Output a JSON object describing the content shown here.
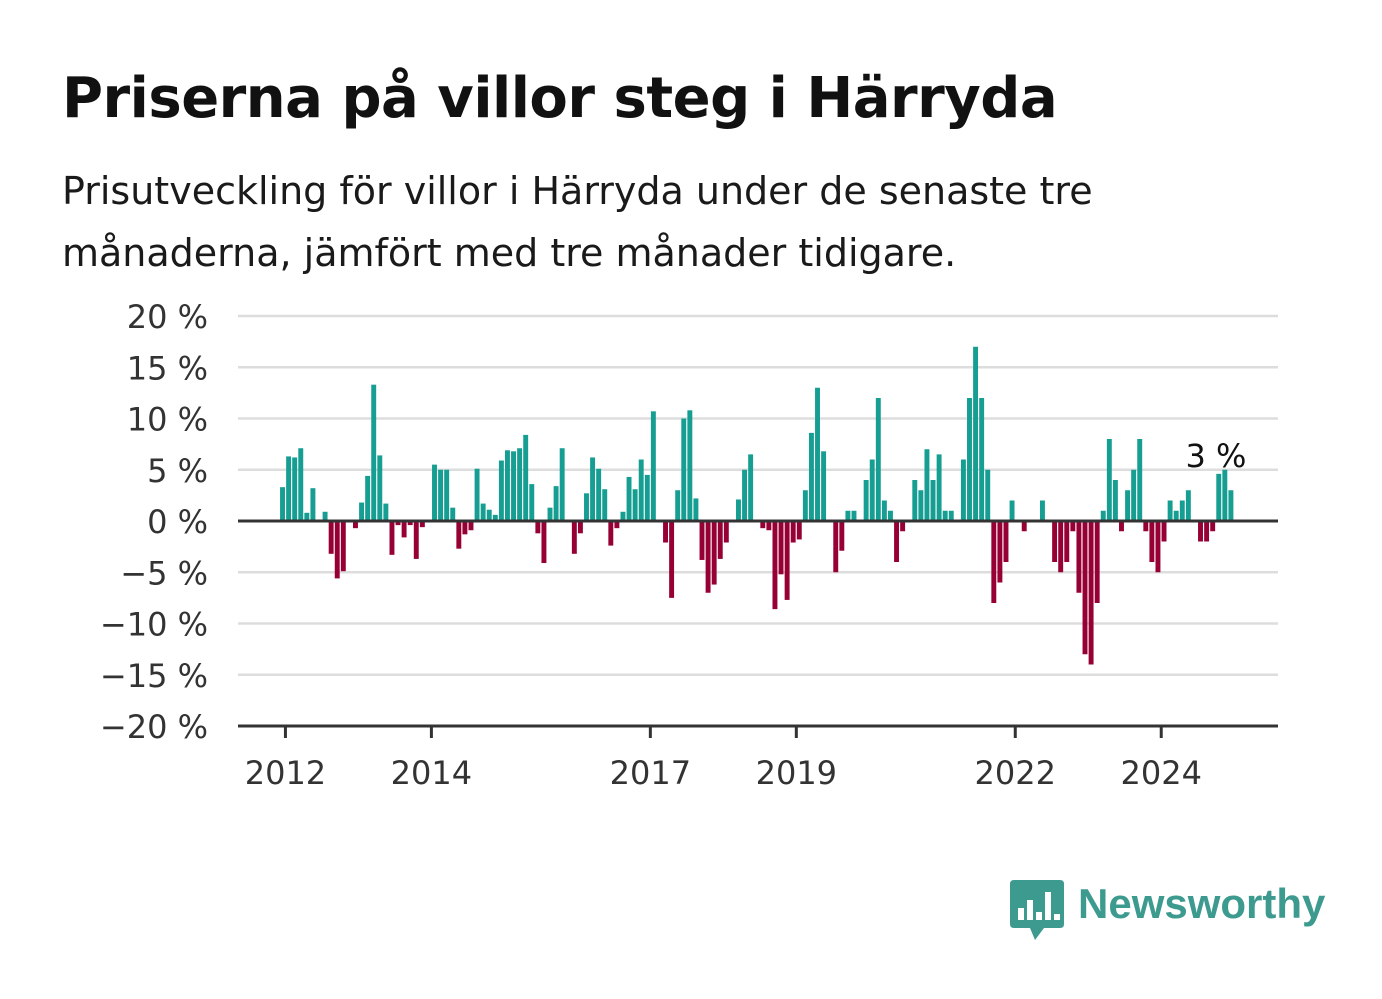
{
  "title": "Priserna på villor steg i Härryda",
  "subtitle": "Prisutveckling för villor i Härryda under de senaste tre månaderna, jämfört med tre månader tidigare.",
  "brand": {
    "name": "Newsworthy",
    "icon": "bar-chart-speech-bubble-icon",
    "color": "#3d9a8f"
  },
  "colors": {
    "positive": "#169e92",
    "negative": "#960034",
    "grid": "#dddddd",
    "axis": "#333333"
  },
  "chart_data": {
    "type": "bar",
    "title": "Priserna på villor steg i Härryda",
    "ylim": [
      -20,
      20
    ],
    "y_ticks": [
      20,
      15,
      10,
      5,
      0,
      -5,
      -10,
      -15,
      -20
    ],
    "y_tick_labels": [
      "20 %",
      "15 %",
      "10 %",
      "5 %",
      "0 %",
      "−5 %",
      "−10 %",
      "−15 %",
      "−20 %"
    ],
    "x_ticks": [
      "2012",
      "2014",
      "2017",
      "2019",
      "2022",
      "2024"
    ],
    "x_tick_positions": [
      2012.0,
      2014.0,
      2017.0,
      2019.0,
      2022.0,
      2024.0
    ],
    "x_range": [
      2011.35,
      2025.6
    ],
    "x_start": 2011.96,
    "x_step": 0.0833,
    "bar_width": 0.0675,
    "grid": true,
    "annotation": {
      "text": "3 %",
      "x": 2024.75
    },
    "values": [
      3.3,
      6.3,
      6.2,
      7.1,
      0.8,
      3.2,
      0,
      0.9,
      -3.2,
      -5.6,
      -4.9,
      0,
      -0.7,
      1.8,
      4.4,
      13.3,
      6.4,
      1.7,
      -3.3,
      -0.4,
      -1.6,
      -0.4,
      -3.7,
      -0.6,
      0,
      5.5,
      5.0,
      5.0,
      1.3,
      -2.7,
      -1.3,
      -0.9,
      5.1,
      1.7,
      1.1,
      0.6,
      5.9,
      6.9,
      6.8,
      7.1,
      8.4,
      3.6,
      -1.2,
      -4.1,
      1.3,
      3.4,
      7.1,
      0,
      -3.2,
      -1.2,
      2.7,
      6.2,
      5.1,
      3.1,
      -2.4,
      -0.7,
      0.9,
      4.3,
      3.1,
      6.0,
      4.5,
      10.7,
      0,
      -2.1,
      -7.5,
      3.0,
      10.0,
      10.8,
      2.2,
      -3.8,
      -7.0,
      -6.2,
      -3.7,
      -2.1,
      0,
      2.1,
      5.0,
      6.5,
      0,
      -0.7,
      -0.9,
      -8.6,
      -5.2,
      -7.7,
      -2.1,
      -1.8,
      3.0,
      8.6,
      13.0,
      6.8,
      0,
      -5.0,
      -2.9,
      1.0,
      1.0,
      0,
      4.0,
      6.0,
      12.0,
      2.0,
      1.0,
      -4.0,
      -1.0,
      0,
      4.0,
      3.0,
      7.0,
      4.0,
      6.5,
      1.0,
      1.0,
      0,
      6.0,
      12.0,
      17.0,
      12.0,
      5.0,
      -8.0,
      -6.0,
      -4.0,
      2.0,
      0,
      -1.0,
      0,
      0,
      2.0,
      0,
      -4.0,
      -5.0,
      -4.0,
      -1.0,
      -7.0,
      -13.0,
      -14.0,
      -8.0,
      1.0,
      8.0,
      4.0,
      -1.0,
      3.0,
      5.0,
      8.0,
      -1.0,
      -4.0,
      -5.0,
      -2.0,
      2.0,
      1.0,
      2.0,
      3.0,
      0,
      -2.0,
      -2.0,
      -1.0,
      4.6,
      5.0,
      3.0
    ]
  }
}
